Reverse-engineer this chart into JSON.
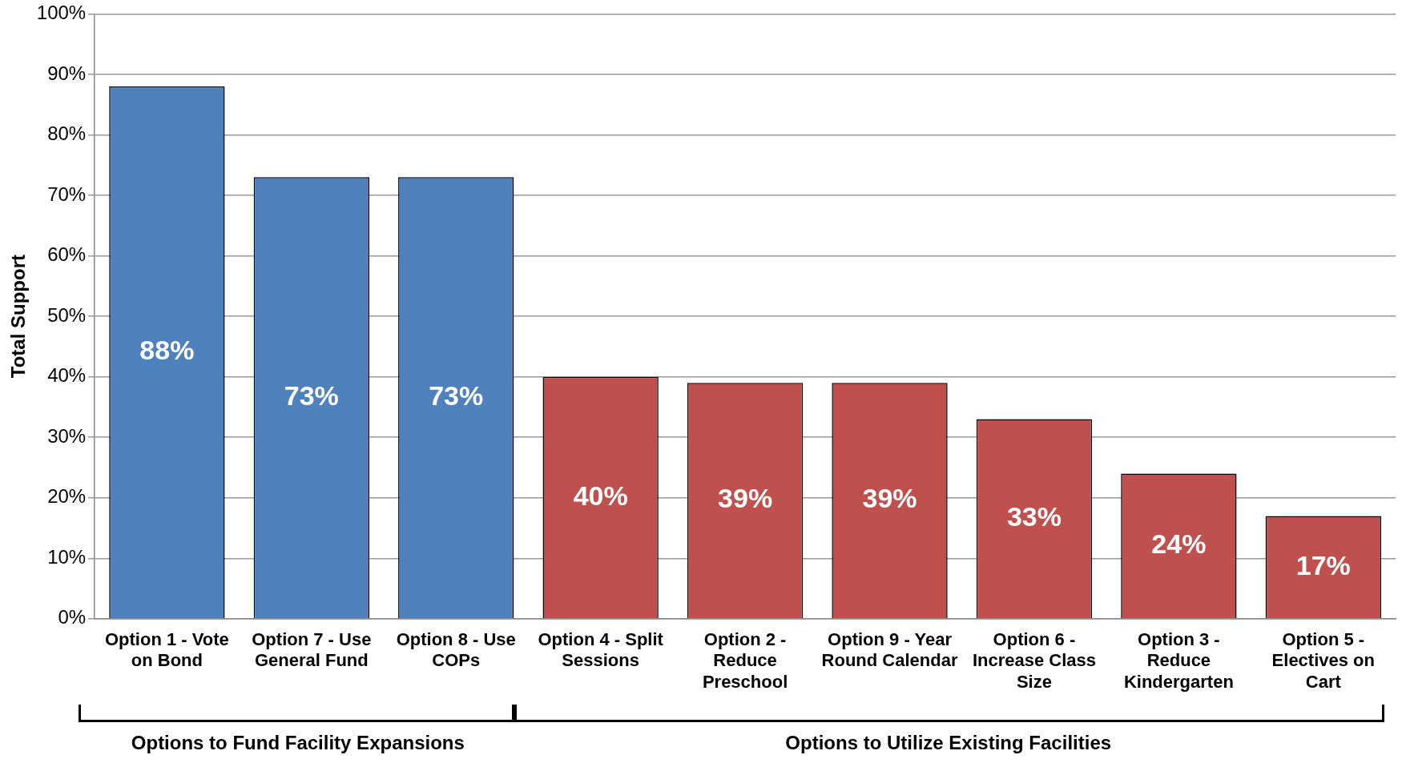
{
  "chart_data": {
    "type": "bar",
    "ylabel": "Total Support",
    "categories": [
      "Option 1 - Vote on Bond",
      "Option 7 - Use General Fund",
      "Option 8 - Use COPs",
      "Option 4 - Split Sessions",
      "Option 2 - Reduce Preschool",
      "Option 9 - Year Round Calendar",
      "Option 6 - Increase Class Size",
      "Option 3 - Reduce Kindergarten",
      "Option 5 - Electives on Cart"
    ],
    "values": [
      88,
      73,
      73,
      40,
      39,
      39,
      33,
      24,
      17
    ],
    "colors": [
      "#4f81bd",
      "#4f81bd",
      "#4f81bd",
      "#c0504d",
      "#c0504d",
      "#c0504d",
      "#c0504d",
      "#c0504d",
      "#c0504d"
    ],
    "value_labels": [
      "88%",
      "73%",
      "73%",
      "40%",
      "39%",
      "39%",
      "33%",
      "24%",
      "17%"
    ],
    "ylim": [
      0,
      100
    ],
    "yticks": [
      {
        "value": 0,
        "label": "0%"
      },
      {
        "value": 10,
        "label": "10%"
      },
      {
        "value": 20,
        "label": "20%"
      },
      {
        "value": 30,
        "label": "30%"
      },
      {
        "value": 40,
        "label": "40%"
      },
      {
        "value": 50,
        "label": "50%"
      },
      {
        "value": 60,
        "label": "60%"
      },
      {
        "value": 70,
        "label": "70%"
      },
      {
        "value": 80,
        "label": "80%"
      },
      {
        "value": 90,
        "label": "90%"
      },
      {
        "value": 100,
        "label": "100%"
      }
    ],
    "grid": "y",
    "legend": false,
    "annotations": [
      "Options to Fund Facility Expansions",
      "Options to Utilize Existing Facilities"
    ]
  }
}
